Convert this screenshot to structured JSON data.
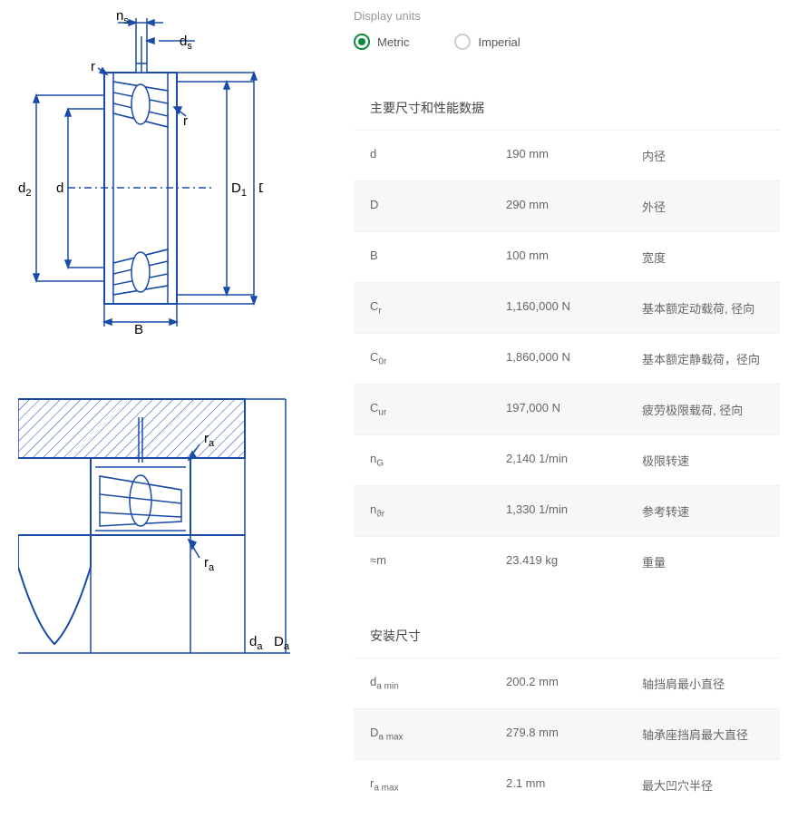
{
  "units": {
    "label": "Display units",
    "metric": "Metric",
    "imperial": "Imperial",
    "selected": "metric"
  },
  "section1": {
    "title": "主要尺寸和性能数据",
    "rows": [
      {
        "sym": "d",
        "sub": "",
        "val": "190 mm",
        "desc": "内径",
        "alt": false
      },
      {
        "sym": "D",
        "sub": "",
        "val": "290 mm",
        "desc": "外径",
        "alt": true
      },
      {
        "sym": "B",
        "sub": "",
        "val": "100 mm",
        "desc": "宽度",
        "alt": false
      },
      {
        "sym": "C",
        "sub": "r",
        "val": "1,160,000 N",
        "desc": "基本额定动载荷, 径向",
        "alt": true
      },
      {
        "sym": "C",
        "sub": "0r",
        "val": "1,860,000 N",
        "desc": "基本额定静载荷，径向",
        "alt": false
      },
      {
        "sym": "C",
        "sub": "ur",
        "val": "197,000 N",
        "desc": "疲劳极限载荷, 径向",
        "alt": true
      },
      {
        "sym": "n",
        "sub": "G",
        "val": "2,140 1/min",
        "desc": "极限转速",
        "alt": false
      },
      {
        "sym": "n",
        "sub": "ϑr",
        "val": "1,330 1/min",
        "desc": "参考转速",
        "alt": true
      },
      {
        "sym": "≈m",
        "sub": "",
        "val": "23.419 kg",
        "desc": "重量",
        "alt": false
      }
    ]
  },
  "section2": {
    "title": "安装尺寸",
    "rows": [
      {
        "sym": "d",
        "sub": "a min",
        "val": "200.2 mm",
        "desc": "轴挡肩最小直径",
        "alt": false
      },
      {
        "sym": "D",
        "sub": "a max",
        "val": "279.8 mm",
        "desc": "轴承座挡肩最大直径",
        "alt": true
      },
      {
        "sym": "r",
        "sub": "a max",
        "val": "2.1 mm",
        "desc": "最大凹穴半径",
        "alt": false
      }
    ]
  },
  "diagram1": {
    "labels": {
      "ns": "n",
      "ns_sub": "s",
      "ds": "d",
      "ds_sub": "s",
      "r1": "r",
      "r2": "r",
      "d2": "d",
      "d2_sub": "2",
      "d": "d",
      "D1": "D",
      "D1_sub": "1",
      "D": "D",
      "B": "B"
    },
    "stroke": "#1a4ba8",
    "fill_hatch": "#1a4ba8"
  },
  "diagram2": {
    "labels": {
      "ra": "r",
      "ra_sub": "a",
      "da": "d",
      "da_sub": "a",
      "Da": "D",
      "Da_sub": "a"
    },
    "stroke": "#1a4ba8"
  }
}
